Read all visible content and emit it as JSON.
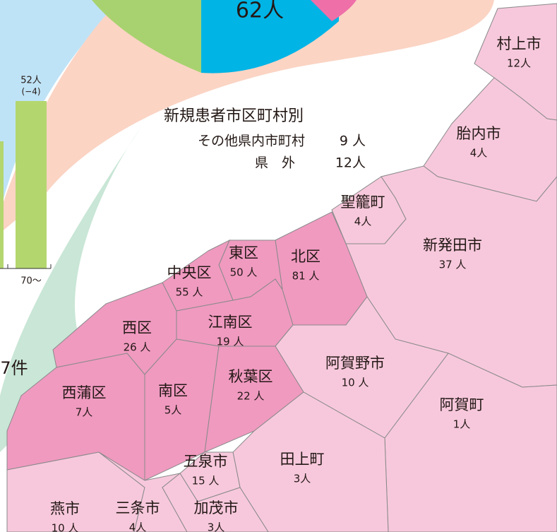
{
  "pie": {
    "label": "62人"
  },
  "bar": {
    "value_label": "52人",
    "change_label": "(−4)",
    "axis_label": "70～"
  },
  "side_label": "7件",
  "summary": {
    "title": "新規患者市区町村別",
    "rows": [
      {
        "name": "その他県内市町村",
        "count": "9 人"
      },
      {
        "name": "県　外",
        "count": "12人"
      }
    ]
  },
  "regions": [
    {
      "name": "村上市",
      "count": "12人"
    },
    {
      "name": "胎内市",
      "count": "4人"
    },
    {
      "name": "聖籠町",
      "count": "4人"
    },
    {
      "name": "新発田市",
      "count": "37 人"
    },
    {
      "name": "北区",
      "count": "81 人"
    },
    {
      "name": "東区",
      "count": "50 人"
    },
    {
      "name": "中央区",
      "count": "55 人"
    },
    {
      "name": "江南区",
      "count": "19 人"
    },
    {
      "name": "西区",
      "count": "26 人"
    },
    {
      "name": "阿賀野市",
      "count": "10 人"
    },
    {
      "name": "西蒲区",
      "count": "7人"
    },
    {
      "name": "南区",
      "count": "5人"
    },
    {
      "name": "秋葉区",
      "count": "22 人"
    },
    {
      "name": "阿賀町",
      "count": "1人"
    },
    {
      "name": "田上町",
      "count": "3人"
    },
    {
      "name": "五泉市",
      "count": "15 人"
    },
    {
      "name": "燕市",
      "count": "10 人"
    },
    {
      "name": "三条市",
      "count": "4人"
    },
    {
      "name": "加茂市",
      "count": "3人"
    }
  ]
}
